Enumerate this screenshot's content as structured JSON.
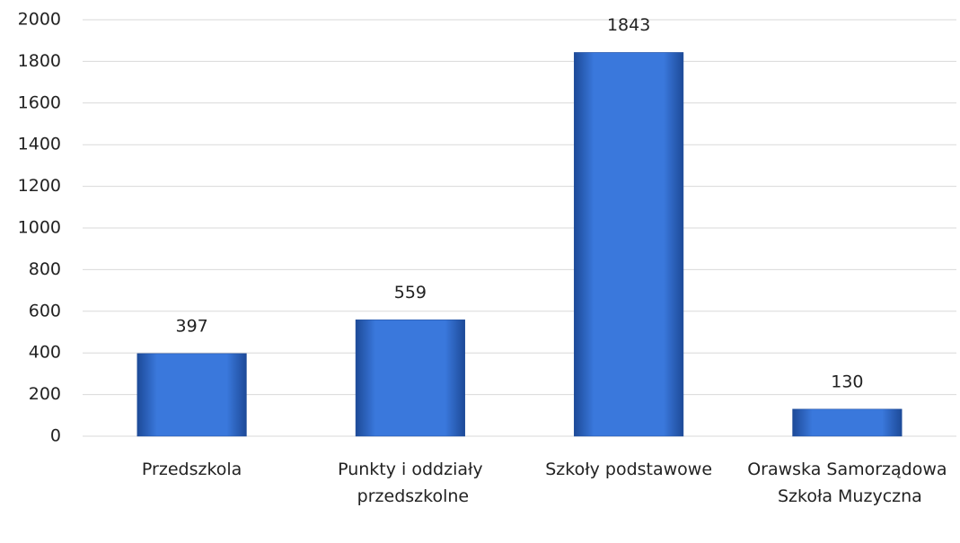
{
  "chart_data": {
    "type": "bar",
    "categories": [
      "Przedszkola",
      "Punkty i oddziały przedszkolne",
      "Szkoły podstawowe",
      "Orawska Samorządowa Szkoła Muzyczna"
    ],
    "values": [
      397,
      559,
      1843,
      130
    ],
    "color": "#3a78dc",
    "ylim": [
      0,
      2000
    ],
    "yticks": [
      0,
      200,
      400,
      600,
      800,
      1000,
      1200,
      1400,
      1600,
      1800,
      2000
    ],
    "grid": true
  }
}
